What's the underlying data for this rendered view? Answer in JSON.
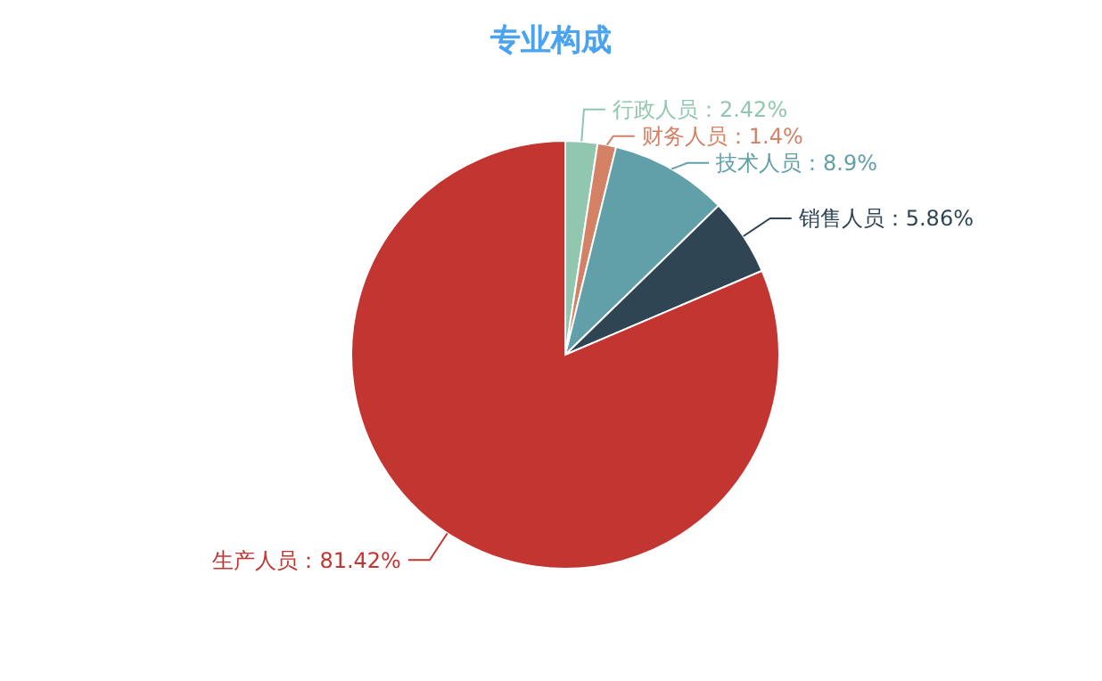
{
  "chart_data": {
    "type": "pie",
    "title": "专业构成",
    "categories": [
      "行政人员",
      "财务人员",
      "技术人员",
      "销售人员",
      "生产人员"
    ],
    "values": [
      2.42,
      1.4,
      8.9,
      5.86,
      81.42
    ],
    "value_labels": [
      "2.42%",
      "1.4%",
      "8.9%",
      "5.86%",
      "81.42%"
    ],
    "colors": [
      "#91c7ae",
      "#d48265",
      "#61a0a8",
      "#2f4554",
      "#c23531"
    ],
    "legend": false
  }
}
